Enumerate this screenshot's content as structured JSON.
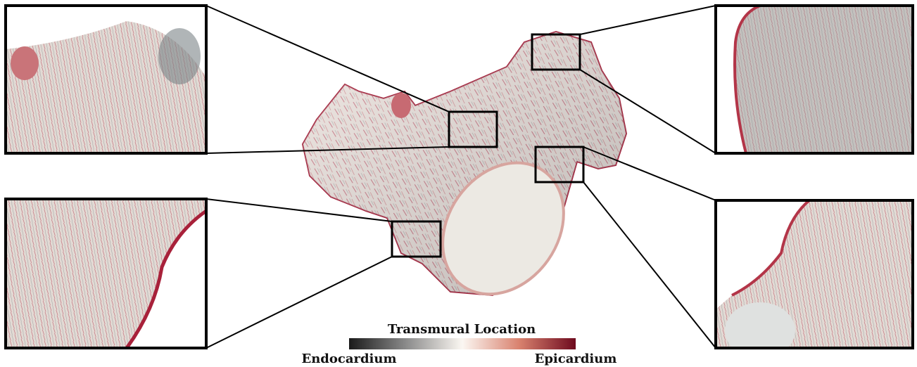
{
  "colorbar": {
    "title": "Transmural Location",
    "min_label": "Endocardium",
    "max_label": "Epicardium"
  }
}
